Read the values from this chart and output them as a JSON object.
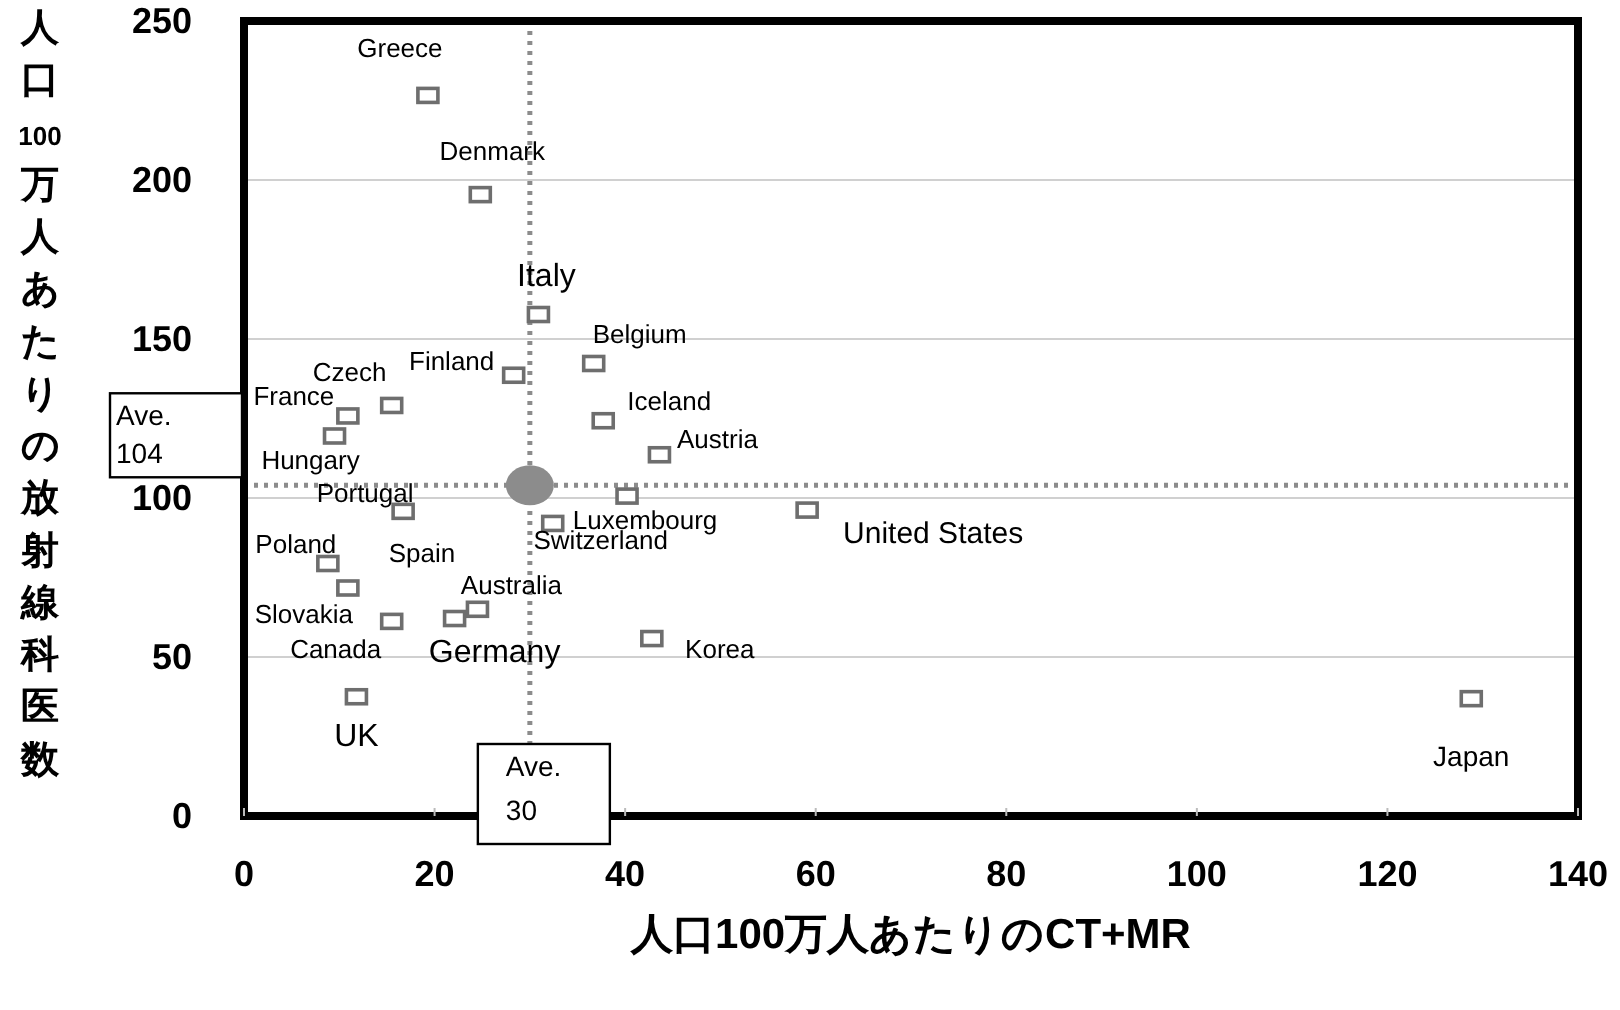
{
  "chart_data": {
    "type": "scatter",
    "xlabel": "人口100万人あたりのCT+MR",
    "ylabel": "人口100万人あたりの放射線科医数",
    "xlim": [
      0,
      140
    ],
    "xticks": [
      0,
      20,
      40,
      60,
      80,
      100,
      120,
      140
    ],
    "ylim": [
      0,
      250
    ],
    "yticks": [
      0,
      50,
      100,
      150,
      200,
      250
    ],
    "grid": "y",
    "series": [
      {
        "color": "#6e6e6e",
        "marker": "square",
        "x": [
          19.3,
          24.8,
          30.9,
          36.7,
          28.3,
          15.5,
          10.9,
          9.5,
          37.7,
          43.6,
          16.7,
          40.2,
          32.4,
          59.1,
          8.8,
          10.9,
          15.5,
          22.1,
          24.5,
          42.8,
          11.8,
          128.8
        ],
        "values": [
          226.6,
          195.4,
          157.7,
          142.3,
          138.6,
          129.1,
          125.8,
          119.5,
          124.3,
          113.6,
          95.8,
          100.6,
          92,
          96.2,
          79.4,
          71.7,
          61.2,
          62.1,
          65.0,
          55.8,
          37.5,
          36.9
        ]
      },
      {
        "color": "#8c8c8c",
        "marker": "circle",
        "x": [
          30
        ],
        "values": [
          104
        ]
      }
    ],
    "ref_lines": [
      {
        "axis": "y",
        "value": 104,
        "label": "Ave.\n104",
        "color": "#8c8c8c",
        "line_style": "dotted"
      },
      {
        "axis": "x",
        "value": 30,
        "label": "Ave.\n30",
        "color": "#8c8c8c",
        "line_style": "dotted"
      }
    ],
    "annotations": [
      {
        "text": "Greece",
        "x": 19.3,
        "y": 226.6
      },
      {
        "text": "Denmark",
        "x": 24.8,
        "y": 195.4
      },
      {
        "text": "Italy",
        "x": 30.9,
        "y": 157.7
      },
      {
        "text": "Belgium",
        "x": 36.7,
        "y": 142.3
      },
      {
        "text": "Finland",
        "x": 28.3,
        "y": 138.6
      },
      {
        "text": "Czech",
        "x": 15.5,
        "y": 129.1
      },
      {
        "text": "France",
        "x": 10.9,
        "y": 125.8
      },
      {
        "text": "Hungary",
        "x": 9.5,
        "y": 119.5
      },
      {
        "text": "Iceland",
        "x": 37.7,
        "y": 124.3
      },
      {
        "text": "Austria",
        "x": 43.6,
        "y": 113.6
      },
      {
        "text": "Portugal",
        "x": 16.7,
        "y": 95.8
      },
      {
        "text": "Luxembourg",
        "x": 40.2,
        "y": 100.6
      },
      {
        "text": "Switzerland",
        "x": 32.4,
        "y": 92
      },
      {
        "text": "United States",
        "x": 59.1,
        "y": 96.2
      },
      {
        "text": "Poland",
        "x": 8.8,
        "y": 79.4
      },
      {
        "text": "Slovakia",
        "x": 10.9,
        "y": 71.7
      },
      {
        "text": "Canada",
        "x": 15.5,
        "y": 61.2
      },
      {
        "text": "Germany",
        "x": 22.1,
        "y": 62.1
      },
      {
        "text": "Australia",
        "x": 24.5,
        "y": 65.0
      },
      {
        "text": "Korea",
        "x": 42.8,
        "y": 55.8
      },
      {
        "text": "UK",
        "x": 11.8,
        "y": 37.5
      },
      {
        "text": "Japan",
        "x": 128.8,
        "y": 36.9
      },
      "Spain"
    ]
  }
}
